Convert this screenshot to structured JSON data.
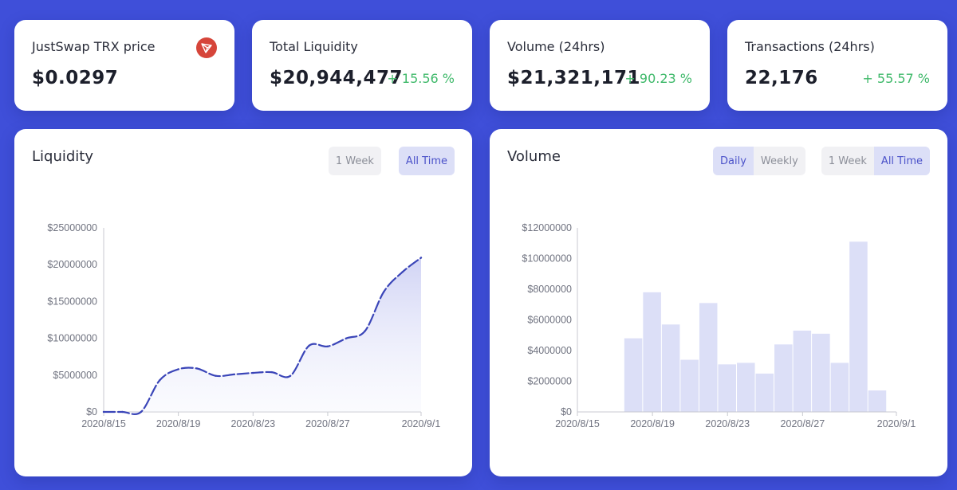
{
  "stats": {
    "price": {
      "title": "JustSwap TRX price",
      "value": "$0.0297",
      "icon": "tron-logo-icon"
    },
    "liquidity": {
      "title": "Total Liquidity",
      "value": "$20,944,477",
      "change": "+ 15.56 %"
    },
    "volume": {
      "title": "Volume (24hrs)",
      "value": "$21,321,171",
      "change": "+ 90.23 %"
    },
    "transactions": {
      "title": "Transactions (24hrs)",
      "value": "22,176",
      "change": "+ 55.57 %"
    }
  },
  "liquidity_panel": {
    "title": "Liquidity",
    "range_buttons": [
      "1 Week",
      "All Time"
    ],
    "active_range": "All Time"
  },
  "volume_panel": {
    "title": "Volume",
    "period_buttons": [
      "Daily",
      "Weekly"
    ],
    "active_period": "Daily",
    "range_buttons": [
      "1 Week",
      "All Time"
    ],
    "active_range": "All Time"
  },
  "colors": {
    "background": "#3f4fd9",
    "positive": "#3fb96a",
    "line": "#3a45b8",
    "bar": "#dcdff7"
  },
  "chart_data": [
    {
      "type": "area",
      "title": "",
      "xlabel": "",
      "ylabel": "",
      "x_ticks": [
        "2020/8/15",
        "2020/8/19",
        "2020/8/23",
        "2020/8/27",
        "2020/9/1"
      ],
      "y_ticks": [
        "$0",
        "$5000000",
        "$10000000",
        "$15000000",
        "$20000000",
        "$25000000"
      ],
      "ylim": [
        0,
        25000000
      ],
      "x": [
        "2020/8/15",
        "2020/8/16",
        "2020/8/17",
        "2020/8/18",
        "2020/8/19",
        "2020/8/20",
        "2020/8/21",
        "2020/8/22",
        "2020/8/23",
        "2020/8/24",
        "2020/8/25",
        "2020/8/26",
        "2020/8/27",
        "2020/8/28",
        "2020/8/29",
        "2020/8/30",
        "2020/8/31",
        "2020/9/1"
      ],
      "values": [
        0,
        0,
        0,
        4300000,
        5800000,
        5900000,
        4900000,
        5100000,
        5300000,
        5400000,
        4900000,
        9000000,
        8900000,
        10000000,
        11000000,
        16300000,
        19000000,
        20944477
      ],
      "line_style": "dashed",
      "grid": false
    },
    {
      "type": "bar",
      "title": "",
      "xlabel": "",
      "ylabel": "",
      "x_ticks": [
        "2020/8/15",
        "2020/8/19",
        "2020/8/23",
        "2020/8/27",
        "2020/9/1"
      ],
      "y_ticks": [
        "$0",
        "$2000000",
        "$4000000",
        "$6000000",
        "$8000000",
        "$10000000",
        "$12000000"
      ],
      "ylim": [
        0,
        12000000
      ],
      "categories": [
        "2020/8/15",
        "2020/8/16",
        "2020/8/17",
        "2020/8/18",
        "2020/8/19",
        "2020/8/20",
        "2020/8/21",
        "2020/8/22",
        "2020/8/23",
        "2020/8/24",
        "2020/8/25",
        "2020/8/26",
        "2020/8/27",
        "2020/8/28",
        "2020/8/29",
        "2020/8/30",
        "2020/8/31"
      ],
      "values": [
        0,
        0,
        0,
        4800000,
        7800000,
        5700000,
        3400000,
        7100000,
        3100000,
        3200000,
        2500000,
        4400000,
        5300000,
        5100000,
        3200000,
        11100000,
        1400000
      ],
      "grid": false
    }
  ]
}
